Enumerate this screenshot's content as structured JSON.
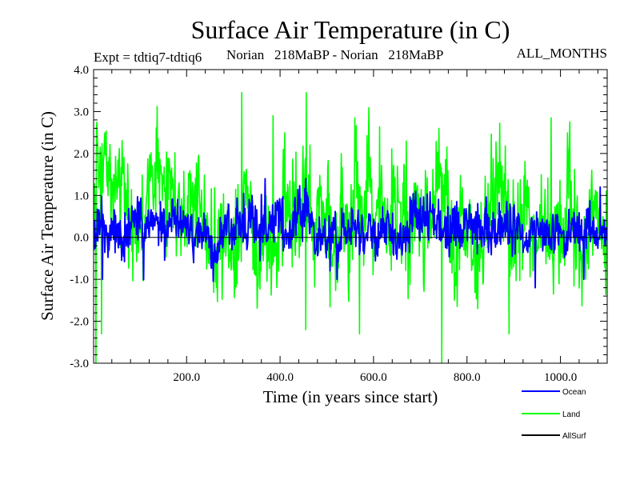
{
  "chart_data": {
    "type": "line",
    "title": "Surface Air Temperature (in C)",
    "subtitle_left": "Expt = tdtiq7-tdtiq6",
    "subtitle_mid": "Norian   218MaBP - Norian   218MaBP",
    "subtitle_right": "ALL_MONTHS",
    "xlabel": "Time (in years since start)",
    "ylabel": "Surface Air Temperature (in C)",
    "xlim": [
      1,
      1100
    ],
    "ylim": [
      -3.0,
      4.0
    ],
    "x_ticks": [
      200,
      400,
      600,
      800,
      1000
    ],
    "x_tick_labels": [
      "200.0",
      "400.0",
      "600.0",
      "800.0",
      "1000.0"
    ],
    "y_ticks": [
      -3,
      -2,
      -1,
      0,
      1,
      2,
      3,
      4
    ],
    "y_tick_labels": [
      "-3.0",
      "-2.0",
      "-1.0",
      "0.0",
      "1.0",
      "2.0",
      "3.0",
      "4.0"
    ],
    "zero_line": 0.0,
    "series": [
      {
        "name": "Land",
        "color": "#00ff00",
        "mean": 0.45,
        "noise_sd": 0.75,
        "min": -3.0,
        "max": 3.5,
        "peaks": [
          [
            318,
            3.45
          ],
          [
            456,
            3.45
          ],
          [
            385,
            2.9
          ],
          [
            560,
            2.85
          ],
          [
            980,
            2.85
          ],
          [
            740,
            2.6
          ]
        ],
        "troughs": [
          [
            6,
            -3.0
          ],
          [
            746,
            -3.0
          ],
          [
            455,
            -2.2
          ],
          [
            570,
            -2.3
          ],
          [
            890,
            -2.3
          ],
          [
            18,
            -2.3
          ]
        ]
      },
      {
        "name": "Ocean",
        "color": "#0000ff",
        "mean": 0.2,
        "noise_sd": 0.32,
        "min": -1.2,
        "max": 1.4,
        "peaks": [
          [
            455,
            1.4
          ],
          [
            1085,
            1.2
          ],
          [
            340,
            1.0
          ],
          [
            690,
            1.1
          ]
        ],
        "troughs": [
          [
            522,
            -1.0
          ],
          [
            946,
            -1.2
          ],
          [
            1050,
            -1.0
          ],
          [
            20,
            -1.0
          ]
        ]
      }
    ],
    "legend": [
      {
        "label": "Ocean",
        "color": "#0000ff"
      },
      {
        "label": "Land",
        "color": "#00ff00"
      },
      {
        "label": "AllSurf",
        "color": "#000000"
      }
    ],
    "legend_position": "bottom-right"
  }
}
